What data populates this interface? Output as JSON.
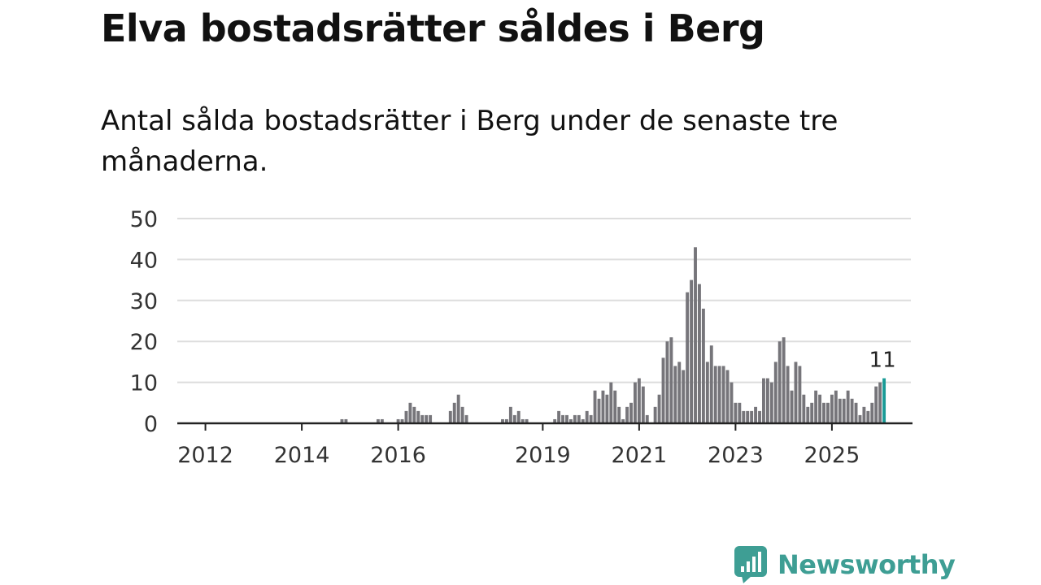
{
  "title": "Elva bostadsrätter såldes i Berg",
  "subtitle": "Antal sålda bostadsrätter i Berg under de senaste tre månaderna.",
  "brand": {
    "name": "Newsworthy",
    "icon": "newsworthy-logo-icon"
  },
  "colors": {
    "bar": "#76757a",
    "highlight": "#199b96",
    "grid": "#dddddd",
    "axis": "#222222"
  },
  "chart_data": {
    "type": "bar",
    "title": "Elva bostadsrätter såldes i Berg",
    "subtitle": "Antal sålda bostadsrätter i Berg under de senaste tre månaderna.",
    "xlabel": "",
    "ylabel": "",
    "ylim": [
      0,
      50
    ],
    "yticks": [
      0,
      10,
      20,
      30,
      40,
      50
    ],
    "grid": true,
    "x_start_year": 2011.5,
    "x_tick_labels": [
      "2012",
      "2014",
      "2016",
      "2019",
      "2021",
      "2023",
      "2025"
    ],
    "x_tick_years": [
      2012,
      2014,
      2016,
      2019,
      2021,
      2023,
      2025
    ],
    "values": [
      0,
      0,
      0,
      0,
      0,
      0,
      0,
      0,
      0,
      0,
      0,
      0,
      0,
      0,
      0,
      0,
      0,
      0,
      0,
      0,
      0,
      0,
      0,
      0,
      0,
      0,
      0,
      0,
      0,
      0,
      0,
      0,
      0,
      0,
      0,
      0,
      0,
      0,
      0,
      0,
      1,
      1,
      0,
      0,
      0,
      0,
      0,
      0,
      0,
      1,
      1,
      0,
      0,
      0,
      1,
      1,
      3,
      5,
      4,
      3,
      2,
      2,
      2,
      0,
      0,
      0,
      0,
      3,
      5,
      7,
      4,
      2,
      0,
      0,
      0,
      0,
      0,
      0,
      0,
      0,
      1,
      1,
      4,
      2,
      3,
      1,
      1,
      0,
      0,
      0,
      0,
      0,
      0,
      1,
      3,
      2,
      2,
      1,
      2,
      2,
      1,
      3,
      2,
      8,
      6,
      8,
      7,
      10,
      8,
      4,
      1,
      4,
      5,
      10,
      11,
      9,
      2,
      0,
      4,
      7,
      16,
      20,
      21,
      14,
      15,
      13,
      32,
      35,
      43,
      34,
      28,
      15,
      19,
      14,
      14,
      14,
      13,
      10,
      5,
      5,
      3,
      3,
      3,
      4,
      3,
      11,
      11,
      10,
      15,
      20,
      21,
      14,
      8,
      15,
      14,
      7,
      4,
      5,
      8,
      7,
      5,
      5,
      7,
      8,
      6,
      6,
      8,
      6,
      5,
      2,
      4,
      3,
      5,
      9,
      10,
      11
    ],
    "highlight_last": true,
    "annotation": {
      "value_label": "11"
    }
  }
}
